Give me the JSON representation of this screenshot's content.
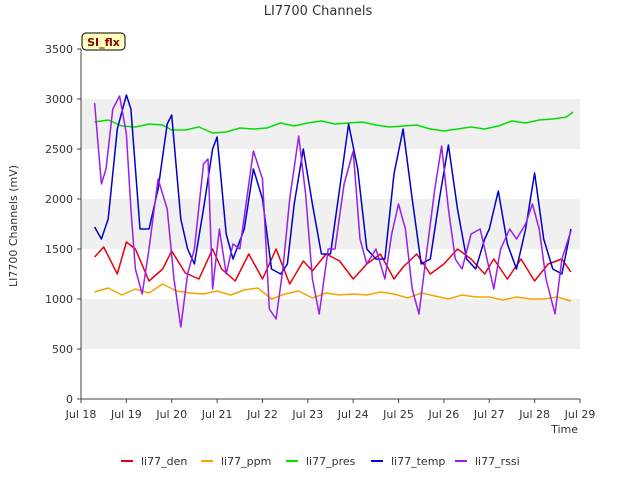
{
  "chart_data": {
    "type": "line",
    "title": "LI7700 Channels",
    "xlabel": "Time",
    "ylabel": "LI7700 Channels (mV)",
    "badge": "SI_flx",
    "xlim": [
      0,
      11
    ],
    "ylim": [
      0,
      3500
    ],
    "x_ticks": [
      {
        "v": 0,
        "label": "Jul 18"
      },
      {
        "v": 1,
        "label": "Jul 19"
      },
      {
        "v": 2,
        "label": "Jul 20"
      },
      {
        "v": 3,
        "label": "Jul 21"
      },
      {
        "v": 4,
        "label": "Jul 22"
      },
      {
        "v": 5,
        "label": "Jul 23"
      },
      {
        "v": 6,
        "label": "Jul 24"
      },
      {
        "v": 7,
        "label": "Jul 25"
      },
      {
        "v": 8,
        "label": "Jul 26"
      },
      {
        "v": 9,
        "label": "Jul 27"
      },
      {
        "v": 10,
        "label": "Jul 28"
      },
      {
        "v": 11,
        "label": "Jul 29"
      }
    ],
    "y_ticks": [
      0,
      500,
      1000,
      1500,
      2000,
      2500,
      3000,
      3500
    ],
    "x_note": "x values are days since Jul 18 00:00",
    "grid": "horizontal alternating bands",
    "legend_position": "bottom",
    "series": [
      {
        "name": "li77_den",
        "color": "#e8000b",
        "x": [
          0.3,
          0.5,
          0.8,
          1.0,
          1.2,
          1.5,
          1.8,
          2.0,
          2.3,
          2.6,
          2.9,
          3.1,
          3.4,
          3.7,
          4.0,
          4.3,
          4.6,
          4.9,
          5.1,
          5.4,
          5.7,
          6.0,
          6.3,
          6.6,
          6.9,
          7.1,
          7.4,
          7.7,
          8.0,
          8.3,
          8.6,
          8.9,
          9.1,
          9.4,
          9.7,
          10.0,
          10.3,
          10.6,
          10.8
        ],
        "y": [
          1420,
          1520,
          1250,
          1570,
          1500,
          1180,
          1300,
          1480,
          1260,
          1200,
          1500,
          1300,
          1180,
          1450,
          1200,
          1500,
          1150,
          1380,
          1280,
          1450,
          1380,
          1200,
          1350,
          1450,
          1200,
          1320,
          1450,
          1250,
          1350,
          1500,
          1400,
          1250,
          1400,
          1200,
          1400,
          1180,
          1350,
          1400,
          1270
        ]
      },
      {
        "name": "li77_ppm",
        "color": "#f5a300",
        "x": [
          0.3,
          0.6,
          0.9,
          1.2,
          1.5,
          1.8,
          2.1,
          2.4,
          2.7,
          3.0,
          3.3,
          3.6,
          3.9,
          4.2,
          4.5,
          4.8,
          5.1,
          5.4,
          5.7,
          6.0,
          6.3,
          6.6,
          6.9,
          7.2,
          7.5,
          7.8,
          8.1,
          8.4,
          8.7,
          9.0,
          9.3,
          9.6,
          9.9,
          10.2,
          10.5,
          10.8
        ],
        "y": [
          1070,
          1110,
          1040,
          1100,
          1060,
          1150,
          1080,
          1060,
          1050,
          1080,
          1040,
          1090,
          1110,
          1000,
          1050,
          1080,
          1010,
          1060,
          1040,
          1050,
          1040,
          1070,
          1050,
          1010,
          1060,
          1030,
          1000,
          1040,
          1020,
          1020,
          990,
          1020,
          1000,
          1000,
          1020,
          980
        ]
      },
      {
        "name": "li77_pres",
        "color": "#00e000",
        "x": [
          0.3,
          0.6,
          0.9,
          1.2,
          1.5,
          1.8,
          2.0,
          2.3,
          2.6,
          2.9,
          3.2,
          3.5,
          3.8,
          4.1,
          4.4,
          4.7,
          5.0,
          5.3,
          5.6,
          5.9,
          6.2,
          6.5,
          6.8,
          7.1,
          7.4,
          7.7,
          8.0,
          8.3,
          8.6,
          8.9,
          9.2,
          9.5,
          9.8,
          10.1,
          10.4,
          10.7,
          10.85
        ],
        "y": [
          2770,
          2790,
          2730,
          2720,
          2750,
          2740,
          2690,
          2690,
          2720,
          2660,
          2670,
          2710,
          2700,
          2710,
          2760,
          2730,
          2760,
          2780,
          2750,
          2760,
          2770,
          2740,
          2720,
          2730,
          2740,
          2700,
          2680,
          2700,
          2720,
          2700,
          2730,
          2780,
          2760,
          2790,
          2800,
          2820,
          2870
        ]
      },
      {
        "name": "li77_temp",
        "color": "#0000cd",
        "x": [
          0.3,
          0.45,
          0.6,
          0.8,
          1.0,
          1.1,
          1.3,
          1.5,
          1.7,
          1.9,
          2.0,
          2.2,
          2.35,
          2.5,
          2.7,
          2.9,
          3.0,
          3.2,
          3.35,
          3.6,
          3.8,
          4.0,
          4.2,
          4.4,
          4.55,
          4.7,
          4.9,
          5.1,
          5.3,
          5.5,
          5.7,
          5.9,
          6.1,
          6.3,
          6.5,
          6.7,
          6.9,
          7.1,
          7.3,
          7.5,
          7.7,
          7.9,
          8.1,
          8.3,
          8.5,
          8.7,
          8.9,
          9.0,
          9.2,
          9.4,
          9.6,
          9.8,
          10.0,
          10.2,
          10.4,
          10.6,
          10.8
        ],
        "y": [
          1720,
          1600,
          1800,
          2700,
          3040,
          2900,
          1700,
          1700,
          2100,
          2750,
          2840,
          1800,
          1500,
          1350,
          1900,
          2500,
          2620,
          1650,
          1400,
          1700,
          2300,
          2000,
          1300,
          1250,
          1350,
          1950,
          2500,
          1950,
          1450,
          1450,
          2100,
          2750,
          2300,
          1500,
          1400,
          1400,
          2250,
          2700,
          2000,
          1350,
          1400,
          2000,
          2540,
          1900,
          1400,
          1300,
          1600,
          1700,
          2080,
          1550,
          1300,
          1700,
          2260,
          1600,
          1300,
          1250,
          1700
        ]
      },
      {
        "name": "li77_rssi",
        "color": "#9b1fe8",
        "x": [
          0.3,
          0.45,
          0.55,
          0.7,
          0.85,
          1.0,
          1.1,
          1.2,
          1.35,
          1.5,
          1.7,
          1.9,
          2.05,
          2.2,
          2.35,
          2.5,
          2.7,
          2.8,
          2.9,
          3.05,
          3.2,
          3.35,
          3.5,
          3.7,
          3.8,
          4.0,
          4.15,
          4.3,
          4.45,
          4.6,
          4.8,
          4.95,
          5.1,
          5.25,
          5.45,
          5.6,
          5.8,
          6.0,
          6.15,
          6.3,
          6.5,
          6.7,
          6.85,
          7.0,
          7.15,
          7.3,
          7.45,
          7.6,
          7.8,
          7.95,
          8.1,
          8.25,
          8.4,
          8.6,
          8.8,
          8.95,
          9.1,
          9.25,
          9.45,
          9.6,
          9.8,
          9.95,
          10.1,
          10.25,
          10.45,
          10.6,
          10.8
        ],
        "y": [
          2960,
          2150,
          2300,
          2900,
          3030,
          2650,
          1900,
          1300,
          1050,
          1500,
          2200,
          1900,
          1200,
          720,
          1250,
          1500,
          2350,
          2400,
          1100,
          1700,
          1250,
          1550,
          1500,
          2150,
          2480,
          2200,
          900,
          800,
          1300,
          2000,
          2630,
          2050,
          1200,
          850,
          1500,
          1500,
          2150,
          2480,
          1600,
          1350,
          1500,
          1200,
          1650,
          1950,
          1700,
          1100,
          850,
          1400,
          2100,
          2530,
          1900,
          1400,
          1300,
          1650,
          1700,
          1400,
          1100,
          1500,
          1700,
          1600,
          1750,
          1950,
          1700,
          1200,
          850,
          1400,
          1680
        ]
      }
    ]
  }
}
